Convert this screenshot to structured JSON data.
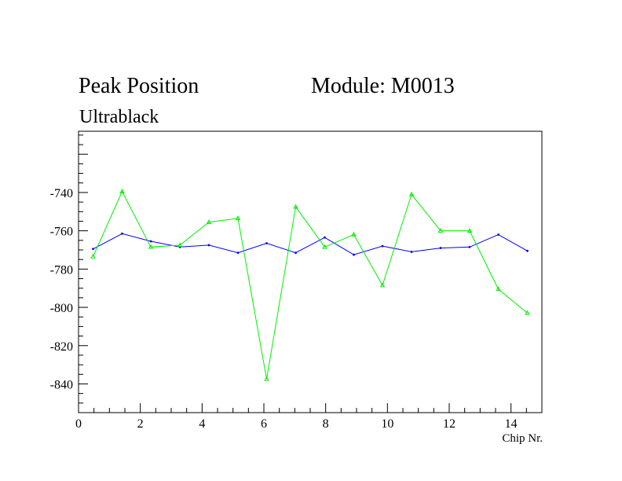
{
  "header": {
    "title_left": "Peak Position",
    "title_right": "Module: M0013",
    "subtitle": "Ultrablack"
  },
  "chart_data": {
    "type": "line",
    "title": "Peak Position",
    "xlabel": "Chip Nr.",
    "ylabel": "",
    "xlim": [
      0,
      15
    ],
    "ylim": [
      -855,
      -708
    ],
    "x_ticks": [
      0,
      2,
      4,
      6,
      8,
      10,
      12,
      14
    ],
    "y_ticks": [
      -740,
      -760,
      -780,
      -800,
      -820,
      -840
    ],
    "grid": false,
    "x": [
      0.47,
      1.41,
      2.34,
      3.28,
      4.22,
      5.16,
      6.09,
      7.03,
      7.97,
      8.91,
      9.84,
      10.78,
      11.72,
      12.66,
      13.59,
      14.53
    ],
    "series": [
      {
        "color": "#0000ff",
        "marker": "dot",
        "values": [
          -769.5,
          -761.5,
          -765.5,
          -768.5,
          -767.5,
          -771.5,
          -766.5,
          -771.5,
          -763.5,
          -772.5,
          -768.0,
          -771.0,
          -769.0,
          -768.5,
          -762.0,
          -770.5
        ]
      },
      {
        "color": "#00ee00",
        "marker": "triangle",
        "values": [
          -773.5,
          -739.5,
          -768.5,
          -767.5,
          -755.5,
          -753.5,
          -837.5,
          -747.5,
          -768.5,
          -762.0,
          -788.5,
          -741.0,
          -760.0,
          -760.0,
          -790.5,
          -803.0
        ]
      }
    ]
  }
}
